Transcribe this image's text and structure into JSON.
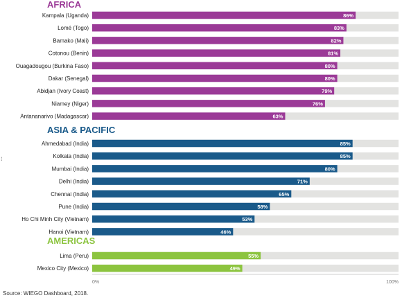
{
  "chart_data": {
    "type": "bar",
    "orientation": "horizontal",
    "xlim": [
      0,
      100
    ],
    "ticks": [
      "0%",
      "100%"
    ],
    "value_suffix": "%",
    "groups": [
      {
        "name": "AFRICA",
        "color": "#9b3a97",
        "categories": [
          "Kampala (Uganda)",
          "Lomé (Togo)",
          "Bamako (Mali)",
          "Cotonou (Benin)",
          "Ouagadougou (Burkina Faso)",
          "Dakar (Senegal)",
          "Abidjan (Ivory Coast)",
          "Niamey (Niger)",
          "Antananarivo (Madagascar)"
        ],
        "values": [
          86,
          83,
          82,
          81,
          80,
          80,
          79,
          76,
          63
        ]
      },
      {
        "name": "ASIA & PACIFIC",
        "color": "#1a5a8a",
        "categories": [
          "Ahmedabad (India)",
          "Kolkata (India)",
          "Mumbai (India)",
          "Delhi (India)",
          "Chennai (India)",
          "Pune (India)",
          "Ho Chi Minh City (Vietnam)",
          "Hanoi (Vietnam)"
        ],
        "values": [
          85,
          85,
          80,
          71,
          65,
          58,
          53,
          46
        ]
      },
      {
        "name": "AMERICAS",
        "color": "#8cc43f",
        "categories": [
          "Lima (Peru)",
          "Mexico City (Mexico)"
        ],
        "values": [
          55,
          49
        ]
      }
    ],
    "track_color": "#e3e3e1",
    "grid": false,
    "legend": "none"
  },
  "source": "Source: WIEGO Dashboard, 2018.",
  "stray_mark": "⁝"
}
